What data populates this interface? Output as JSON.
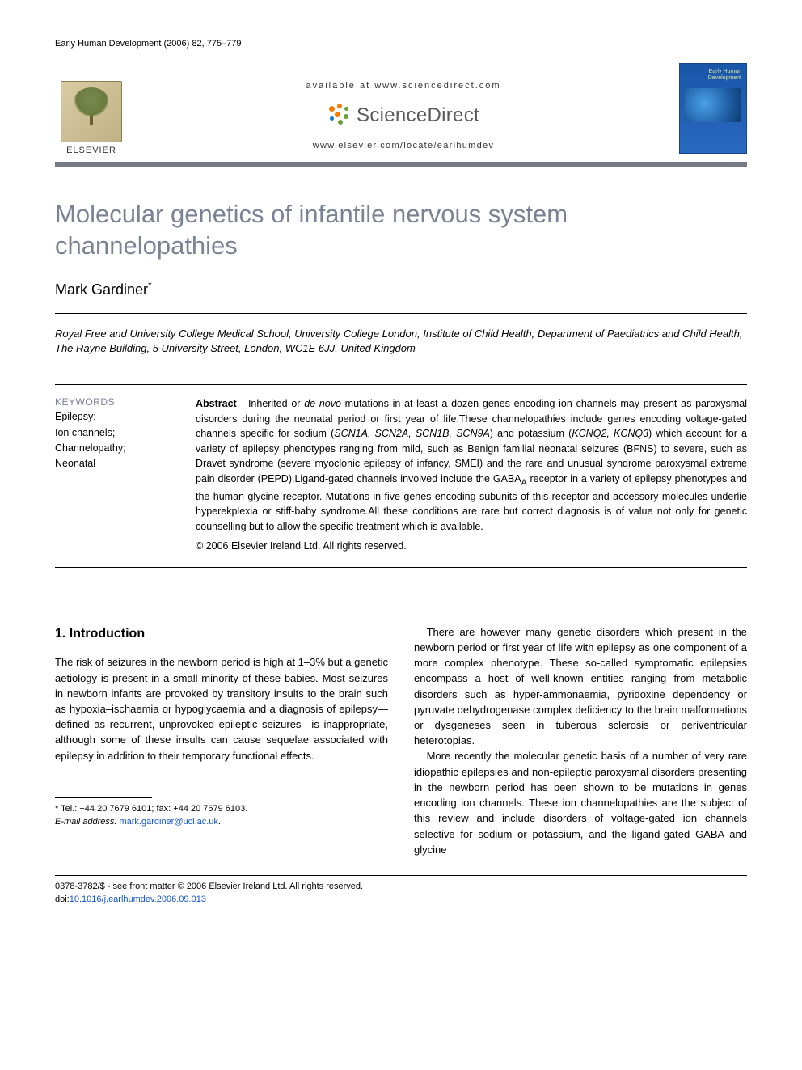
{
  "running_header": "Early Human Development (2006) 82, 775–779",
  "masthead": {
    "publisher_word": "ELSEVIER",
    "available_line": "available at www.sciencedirect.com",
    "sd_word": "ScienceDirect",
    "journal_url": "www.elsevier.com/locate/earlhumdev",
    "cover_title": "Early Human Development",
    "sd_dot_colors": {
      "orange": "#f57c00",
      "green": "#689f38",
      "blue": "#1976d2"
    }
  },
  "article": {
    "title": "Molecular genetics of infantile nervous system channelopathies",
    "author": "Mark Gardiner",
    "author_mark": "*",
    "affiliation": "Royal Free and University College Medical School, University College London, Institute of Child Health, Department of Paediatrics and Child Health, The Rayne Building, 5 University Street, London, WC1E 6JJ, United Kingdom"
  },
  "keywords": {
    "heading": "KEYWORDS",
    "items": [
      "Epilepsy;",
      "Ion channels;",
      "Channelopathy;",
      "Neonatal"
    ]
  },
  "abstract": {
    "label": "Abstract",
    "text_html": "Inherited or <i>de novo</i> mutations in at least a dozen genes encoding ion channels may present as paroxysmal disorders during the neonatal period or first year of life.These channelopathies include genes encoding voltage-gated channels specific for sodium (<i>SCN1A, SCN2A, SCN1B, SCN9A</i>) and potassium (<i>KCNQ2, KCNQ3</i>) which account for a variety of epilepsy phenotypes ranging from mild, such as Benign familial neonatal seizures (BFNS) to severe, such as Dravet syndrome (severe myoclonic epilepsy of infancy, SMEI) and the rare and unusual syndrome paroxysmal extreme pain disorder (PEPD).Ligand-gated channels involved include the GABA<sub>A</sub> receptor in a variety of epilepsy phenotypes and the human glycine receptor. Mutations in five genes encoding subunits of this receptor and accessory molecules underlie hyperekplexia or stiff-baby syndrome.All these conditions are rare but correct diagnosis is of value not only for genetic counselling but to allow the specific treatment which is available.",
    "copyright": "© 2006 Elsevier Ireland Ltd. All rights reserved."
  },
  "body": {
    "section1_head": "1. Introduction",
    "col1_p1": "The risk of seizures in the newborn period is high at 1–3% but a genetic aetiology is present in a small minority of these babies. Most seizures in newborn infants are provoked by transitory insults to the brain such as hypoxia–ischaemia or hypoglycaemia and a diagnosis of epilepsy—defined as recurrent, unprovoked epileptic seizures—is inappropriate, although some of these insults can cause sequelae associated with epilepsy in addition to their temporary functional effects.",
    "col2_p1": "There are however many genetic disorders which present in the newborn period or first year of life with epilepsy as one component of a more complex phenotype. These so-called symptomatic epilepsies encompass a host of well-known entities ranging from metabolic disorders such as hyper-ammonaemia, pyridoxine dependency or pyruvate dehydrogenase complex deficiency to the brain malformations or dysgeneses seen in tuberous sclerosis or periventricular heterotopias.",
    "col2_p2": "More recently the molecular genetic basis of a number of very rare idiopathic epilepsies and non-epileptic paroxysmal disorders presenting in the newborn period has been shown to be mutations in genes encoding ion channels. These ion channelopathies are the subject of this review and include disorders of voltage-gated ion channels selective for sodium or potassium, and the ligand-gated GABA and glycine"
  },
  "footnote": {
    "tel_label": "* Tel.: +44 20 7679 6101; fax: +44 20 7679 6103.",
    "email_label": "E-mail address:",
    "email": "mark.gardiner@ucl.ac.uk"
  },
  "footer": {
    "line1": "0378-3782/$ - see front matter © 2006 Elsevier Ireland Ltd. All rights reserved.",
    "doi_label": "doi:",
    "doi": "10.1016/j.earlhumdev.2006.09.013"
  },
  "colors": {
    "title_gray": "#7a8296",
    "rule_gray": "#767c85",
    "link_blue": "#1155cc"
  }
}
